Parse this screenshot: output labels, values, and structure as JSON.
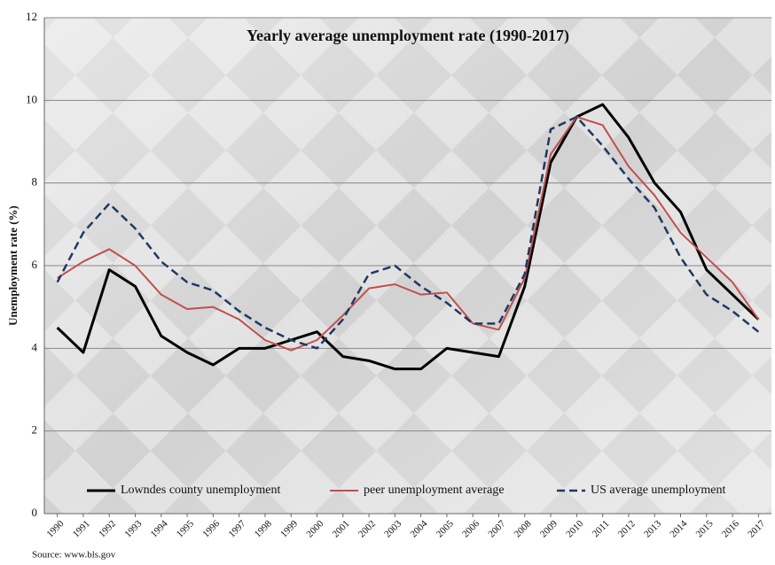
{
  "chart_data": {
    "type": "line",
    "title": "Yearly average unemployment  rate (1990-2017)",
    "y_label": "Unemployment rate (%)",
    "source": "Source: www.bls.gov",
    "categories": [
      "1990",
      "1991",
      "1992",
      "1993",
      "1994",
      "1995",
      "1996",
      "1997",
      "1998",
      "1999",
      "2000",
      "2001",
      "2002",
      "2003",
      "2004",
      "2005",
      "2006",
      "2007",
      "2008",
      "2009",
      "2010",
      "2011",
      "2012",
      "2013",
      "2014",
      "2015",
      "2016",
      "2017"
    ],
    "series": [
      {
        "name": "Lowndes county unemployment",
        "color": "#000000",
        "line_style": "solid",
        "line_width": 3,
        "values": [
          4.5,
          3.9,
          5.9,
          5.5,
          4.3,
          3.9,
          3.6,
          4.0,
          4.0,
          4.2,
          4.4,
          3.8,
          3.7,
          3.5,
          3.5,
          4.0,
          3.9,
          3.8,
          5.5,
          8.5,
          9.6,
          9.9,
          9.1,
          8.0,
          7.3,
          5.9,
          5.3,
          4.7
        ]
      },
      {
        "name": "peer unemployment average",
        "color": "#c0504d",
        "line_style": "solid",
        "line_width": 2,
        "values": [
          5.7,
          6.1,
          6.4,
          6.0,
          5.3,
          4.95,
          5.0,
          4.7,
          4.2,
          3.95,
          4.2,
          4.8,
          5.45,
          5.55,
          5.3,
          5.35,
          4.6,
          4.45,
          5.7,
          8.7,
          9.6,
          9.4,
          8.4,
          7.7,
          6.8,
          6.2,
          5.6,
          4.7
        ]
      },
      {
        "name": "US average unemployment",
        "color": "#1f3864",
        "line_style": "dashed",
        "line_width": 2.5,
        "values": [
          5.6,
          6.8,
          7.5,
          6.9,
          6.1,
          5.6,
          5.4,
          4.9,
          4.5,
          4.2,
          4.0,
          4.7,
          5.8,
          6.0,
          5.5,
          5.1,
          4.6,
          4.6,
          5.8,
          9.3,
          9.6,
          8.9,
          8.1,
          7.4,
          6.2,
          5.3,
          4.9,
          4.4
        ]
      }
    ],
    "ylim": [
      0,
      12
    ],
    "yticks": [
      0,
      2,
      4,
      6,
      8,
      10,
      12
    ],
    "grid": true,
    "legend": "bottom"
  }
}
